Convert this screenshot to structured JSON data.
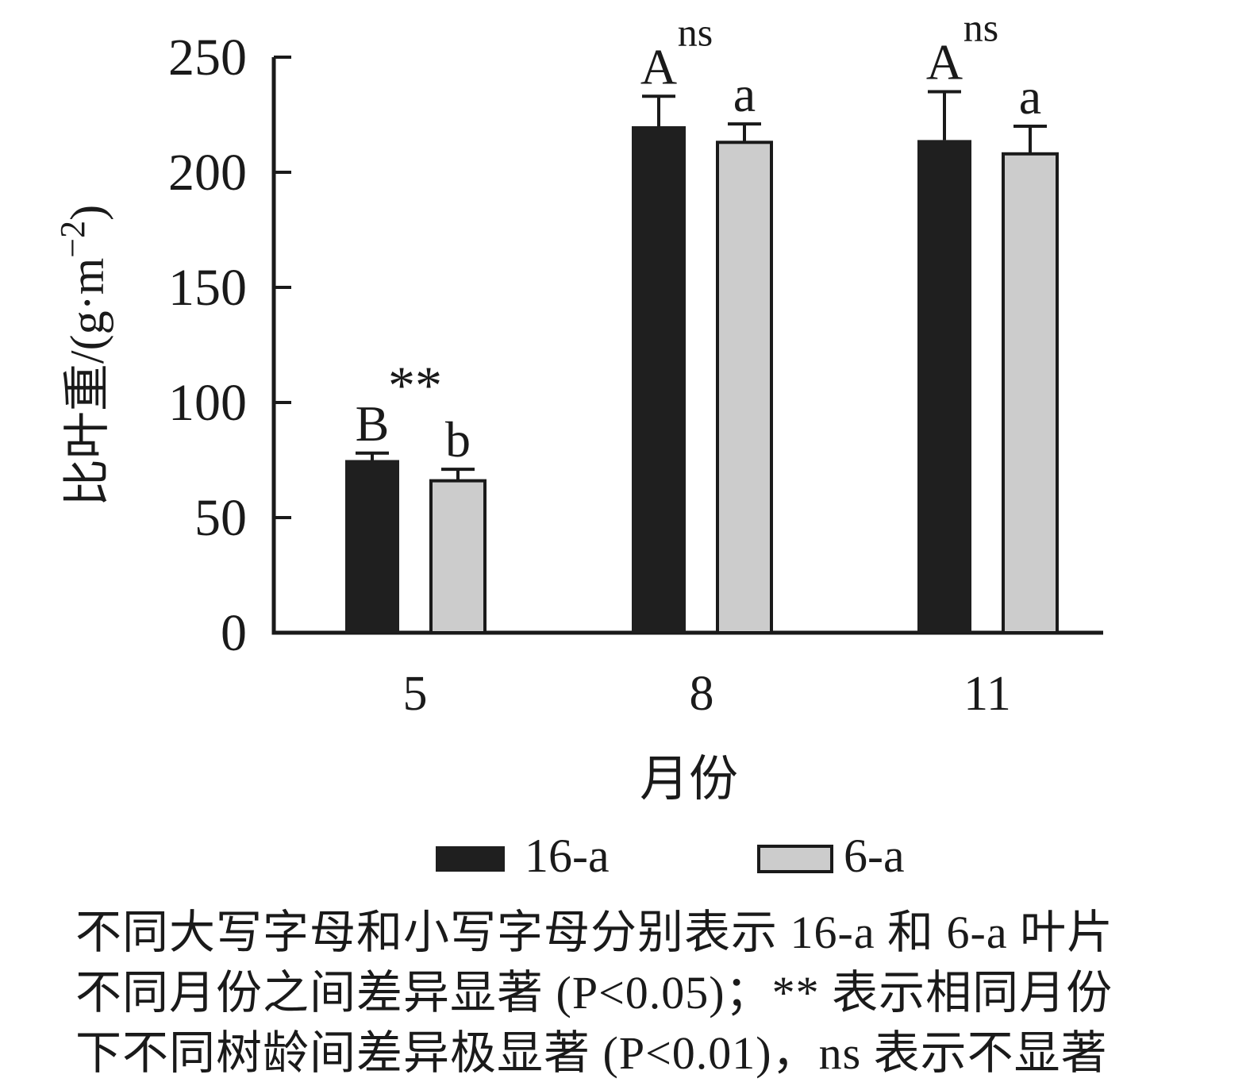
{
  "chart_data": {
    "type": "bar",
    "title": "",
    "xlabel": "月份",
    "ylabel": "比叶重/(g·m⁻²)",
    "ylabel_parts": {
      "prefix": "比叶重/(g·m",
      "superscript": "−2",
      "suffix": ")"
    },
    "categories": [
      "5",
      "8",
      "11"
    ],
    "series": [
      {
        "name": "16-a",
        "color": "#1f1f1f",
        "values": [
          75,
          220,
          214
        ],
        "errors": [
          3,
          13,
          21
        ],
        "letters": [
          "B",
          "A",
          "A"
        ]
      },
      {
        "name": "6-a",
        "color": "#cccccc",
        "values": [
          66,
          213,
          208
        ],
        "errors": [
          5,
          8,
          12
        ],
        "letters": [
          "b",
          "a",
          "a"
        ]
      }
    ],
    "annotations": [
      {
        "category": "5",
        "text": "**",
        "style": "between-bars"
      },
      {
        "category": "8",
        "text": "ns",
        "style": "superscript-on-first-letter"
      },
      {
        "category": "11",
        "text": "ns",
        "style": "superscript-on-first-letter"
      }
    ],
    "ylim": [
      0,
      250
    ],
    "yticks": [
      "0",
      "50",
      "100",
      "150",
      "200",
      "250"
    ],
    "grid": false,
    "legend_position": "bottom",
    "axis_color": "#1a1a1a"
  },
  "legend": {
    "items": [
      {
        "label": "16-a",
        "color": "#1f1f1f",
        "border": false
      },
      {
        "label": "6-a",
        "color": "#cccccc",
        "border": true
      }
    ]
  },
  "caption": {
    "lines": [
      "不同大写字母和小写字母分别表示 16-a 和 6-a 叶片",
      "不同月份之间差异显著 (P<0.05)；** 表示相同月份",
      "下不同树龄间差异极显著 (P<0.01)，ns 表示不显著"
    ]
  }
}
